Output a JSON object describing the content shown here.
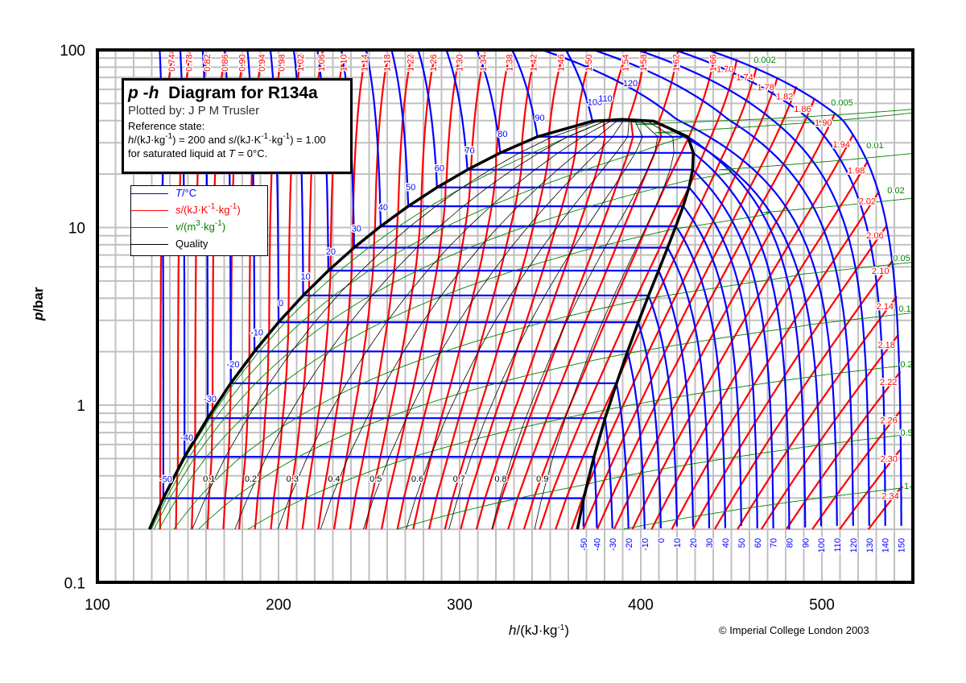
{
  "title_box": {
    "symbol": "p -h",
    "title": "Diagram for R134a",
    "plotted_by": "Plotted by: J P M Trusler",
    "reference": "Reference state:",
    "ref_h_symbol": "h",
    "ref_h_unit": "/(kJ·kg",
    "ref_exp": "-1",
    "ref_mid": ") = 200 and ",
    "ref_s_symbol": "s",
    "ref_s_unit": "/(kJ·K",
    "ref_s_unit2": "·kg",
    "ref_end": ") = 1.00",
    "ref_line2": "for saturated liquid at ",
    "ref_T_symbol": "T",
    "ref_line2_end": " = 0°C."
  },
  "legend": {
    "T_symbol": "T",
    "T_unit": "/°C",
    "s_symbol": "s",
    "s_unit": "/(kJ·K",
    "s_unit2": "·kg",
    "exp_m1": "-1",
    "close": ")",
    "v_symbol": "v",
    "v_unit": "/(m",
    "v_exp": "3",
    "v_unit2": "·kg",
    "quality": "Quality",
    "colors": {
      "T": "#0000ff",
      "s": "#ff0000",
      "v": "#008000",
      "quality": "#000000"
    }
  },
  "copyright": "© Imperial College London 2003",
  "chart_data": {
    "type": "line",
    "title": "p -h Diagram for R134a",
    "x_axis": {
      "symbol": "h",
      "unit": "/(kJ·kg",
      "exp": "-1",
      "close": ")",
      "range": [
        100,
        550
      ],
      "scale": "linear",
      "ticks": [
        "100",
        "200",
        "300",
        "400",
        "500"
      ]
    },
    "y_axis": {
      "symbol": "p",
      "unit": "/bar",
      "range": [
        0.1,
        100
      ],
      "scale": "log",
      "ticks": [
        "0.1",
        "1",
        "10",
        "100"
      ]
    },
    "grid": true,
    "legend_position": "upper-left",
    "saturation": {
      "T": [
        -56.4,
        -50,
        -40,
        -30,
        -20,
        -10,
        0,
        10,
        20,
        30,
        40,
        50,
        60,
        70,
        80,
        90,
        100,
        101.06
      ],
      "p": [
        0.2,
        0.299,
        0.512,
        0.844,
        1.327,
        2.006,
        2.928,
        4.146,
        5.717,
        7.702,
        10.17,
        13.18,
        16.82,
        21.17,
        26.33,
        32.44,
        39.72,
        40.59
      ],
      "h_liquid": [
        128.7,
        136.4,
        148.1,
        160.9,
        173.6,
        186.7,
        200.0,
        213.6,
        227.5,
        241.7,
        256.4,
        271.6,
        287.5,
        304.3,
        322.4,
        342.9,
        373.3,
        389.6
      ],
      "h_vapor": [
        365.0,
        368.5,
        374.2,
        380.3,
        386.6,
        392.7,
        398.6,
        404.3,
        409.8,
        414.8,
        419.4,
        423.4,
        426.6,
        428.6,
        429.0,
        426.0,
        407.0,
        389.6
      ]
    },
    "isotherms_C": [
      "-50",
      "-40",
      "-30",
      "-20",
      "-10",
      "0",
      "10",
      "20",
      "30",
      "40",
      "50",
      "60",
      "70",
      "80",
      "90",
      "100",
      "110",
      "120",
      "130",
      "140",
      "150"
    ],
    "isentropes": [
      "0.74",
      "0.78",
      "0.82",
      "0.86",
      "0.90",
      "0.94",
      "0.98",
      "1.02",
      "1.06",
      "1.10",
      "1.14",
      "1.18",
      "1.22",
      "1.26",
      "1.30",
      "1.34",
      "1.38",
      "1.42",
      "1.46",
      "1.50",
      "1.54",
      "1.58",
      "1.62",
      "1.66",
      "1.70",
      "1.74",
      "1.78",
      "1.82",
      "1.86",
      "1.90",
      "1.94",
      "1.98",
      "2.02",
      "2.06",
      "2.10",
      "2.14",
      "2.18",
      "2.22",
      "2.26",
      "2.30",
      "2.34"
    ],
    "isochores": [
      "0.002",
      "0.005",
      "0.01",
      "0.02",
      "0.05",
      "0.1",
      "0.2",
      "0.5",
      "1"
    ],
    "quality": [
      "0.1",
      "0.2",
      "0.3",
      "0.4",
      "0.5",
      "0.6",
      "0.7",
      "0.8",
      "0.9"
    ]
  }
}
